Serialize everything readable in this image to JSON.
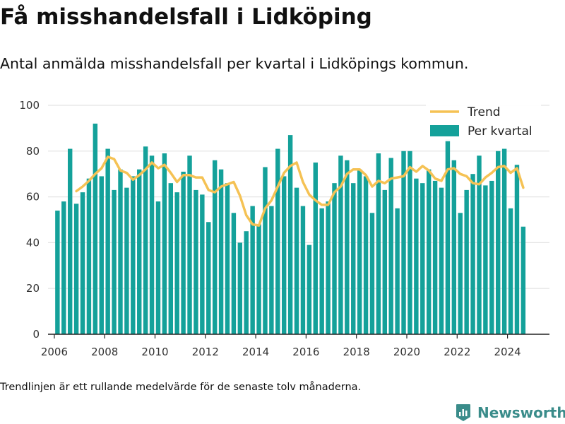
{
  "header": {
    "title": "Få misshandelsfall i Lidköping",
    "subtitle": "Antal anmälda misshandelsfall per kvartal i Lidköpings kommun."
  },
  "footer": {
    "note": "Trendlinjen är ett rullande medelvärde för de senaste tolv månaderna.",
    "brand": "Newsworthy"
  },
  "colors": {
    "bars": "#14a19a",
    "trend": "#f5c254",
    "brand": "#3a8c8a"
  },
  "chart_data": {
    "type": "bar",
    "title": "",
    "xlabel": "",
    "ylabel": "",
    "ylim": [
      0,
      100
    ],
    "yticks": [
      0,
      20,
      40,
      60,
      80,
      100
    ],
    "xticks": [
      "2006",
      "2008",
      "2010",
      "2012",
      "2014",
      "2016",
      "2018",
      "2020",
      "2022",
      "2024"
    ],
    "xlim": [
      "2005-10",
      "2025-09"
    ],
    "grid": true,
    "legend_position": "top-right",
    "categories": [
      "2006-Q1",
      "2006-Q2",
      "2006-Q3",
      "2006-Q4",
      "2007-Q1",
      "2007-Q2",
      "2007-Q3",
      "2007-Q4",
      "2008-Q1",
      "2008-Q2",
      "2008-Q3",
      "2008-Q4",
      "2009-Q1",
      "2009-Q2",
      "2009-Q3",
      "2009-Q4",
      "2010-Q1",
      "2010-Q2",
      "2010-Q3",
      "2010-Q4",
      "2011-Q1",
      "2011-Q2",
      "2011-Q3",
      "2011-Q4",
      "2012-Q1",
      "2012-Q2",
      "2012-Q3",
      "2012-Q4",
      "2013-Q1",
      "2013-Q2",
      "2013-Q3",
      "2013-Q4",
      "2014-Q1",
      "2014-Q2",
      "2014-Q3",
      "2014-Q4",
      "2015-Q1",
      "2015-Q2",
      "2015-Q3",
      "2015-Q4",
      "2016-Q1",
      "2016-Q2",
      "2016-Q3",
      "2016-Q4",
      "2017-Q1",
      "2017-Q2",
      "2017-Q3",
      "2017-Q4",
      "2018-Q1",
      "2018-Q2",
      "2018-Q3",
      "2018-Q4",
      "2019-Q1",
      "2019-Q2",
      "2019-Q3",
      "2019-Q4",
      "2020-Q1",
      "2020-Q2",
      "2020-Q3",
      "2020-Q4",
      "2021-Q1",
      "2021-Q2",
      "2021-Q3",
      "2021-Q4",
      "2022-Q1",
      "2022-Q2",
      "2022-Q3",
      "2022-Q4",
      "2023-Q1",
      "2023-Q2",
      "2023-Q3",
      "2023-Q4",
      "2024-Q1",
      "2024-Q2",
      "2024-Q3"
    ],
    "series": [
      {
        "name": "Per kvartal",
        "type": "bar",
        "values": [
          54,
          58,
          81,
          57,
          62,
          68,
          92,
          69,
          81,
          63,
          72,
          64,
          69,
          72,
          82,
          78,
          58,
          79,
          66,
          62,
          71,
          78,
          63,
          61,
          49,
          76,
          72,
          66,
          53,
          40,
          45,
          56,
          48,
          73,
          56,
          81,
          69,
          87,
          64,
          56,
          39,
          75,
          55,
          58,
          66,
          78,
          76,
          66,
          72,
          69,
          53,
          79,
          63,
          77,
          55,
          80,
          80,
          68,
          66,
          72,
          67,
          64,
          85,
          76,
          53,
          63,
          70,
          78,
          65,
          67,
          80,
          81,
          55,
          74,
          47
        ]
      },
      {
        "name": "Trend",
        "type": "line",
        "values": [
          null,
          null,
          null,
          62.5,
          64.5,
          67,
          70,
          72.5,
          77.5,
          76.5,
          71.5,
          70.5,
          67.5,
          69.5,
          72,
          75,
          72.5,
          74,
          70.5,
          66.5,
          69.5,
          69.5,
          68.5,
          68.5,
          63,
          62,
          64.5,
          65.5,
          66.5,
          60.5,
          52,
          48,
          47.5,
          55,
          58.5,
          64.5,
          70.5,
          73.5,
          75,
          66.5,
          61,
          58.5,
          56.5,
          56.5,
          62,
          64.5,
          70,
          72,
          72,
          69.5,
          64.5,
          67,
          66,
          68,
          68.5,
          69,
          73,
          71,
          73.5,
          71.5,
          68,
          67,
          72,
          72.5,
          70,
          69,
          66,
          65.5,
          68.5,
          70.5,
          73,
          73.5,
          70.5,
          72.5,
          64
        ]
      }
    ]
  }
}
